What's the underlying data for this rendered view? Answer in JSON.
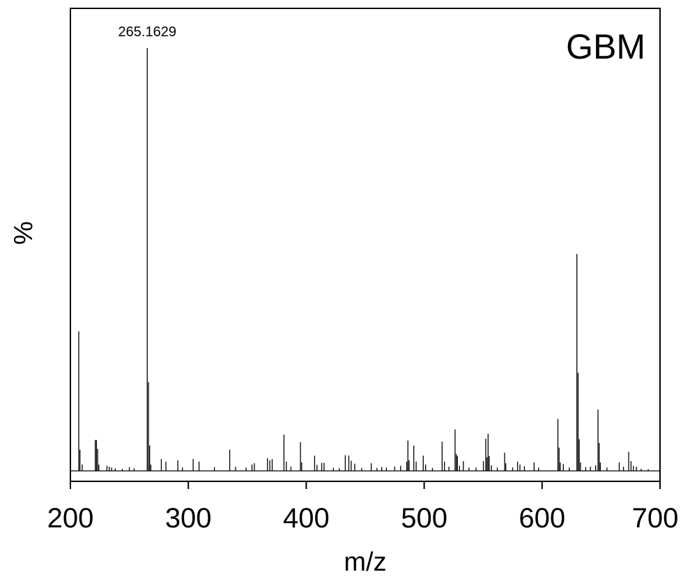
{
  "chart_data": {
    "type": "bar",
    "title": "",
    "panel_label": "GBM",
    "xlabel": "m/z",
    "ylabel": "%",
    "xlim": [
      200,
      700
    ],
    "ylim": [
      0,
      100
    ],
    "xticks": [
      "200",
      "300",
      "400",
      "500",
      "600",
      "700"
    ],
    "grid": false,
    "legend": "none",
    "annotation": {
      "x": 265.1629,
      "text": "265.1629"
    },
    "peaks": [
      {
        "x": 207.1,
        "y": 33
      },
      {
        "x": 208.1,
        "y": 5
      },
      {
        "x": 210.0,
        "y": 1.5
      },
      {
        "x": 221.1,
        "y": 7.3
      },
      {
        "x": 222.1,
        "y": 7.3
      },
      {
        "x": 223.1,
        "y": 5.2
      },
      {
        "x": 224.1,
        "y": 1.5
      },
      {
        "x": 231.0,
        "y": 1.2
      },
      {
        "x": 233.0,
        "y": 1.0
      },
      {
        "x": 235.0,
        "y": 0.8
      },
      {
        "x": 238.0,
        "y": 0.6
      },
      {
        "x": 244.0,
        "y": 0.5
      },
      {
        "x": 250.0,
        "y": 0.9
      },
      {
        "x": 254.0,
        "y": 0.6
      },
      {
        "x": 265.1629,
        "y": 100
      },
      {
        "x": 266.2,
        "y": 21
      },
      {
        "x": 267.2,
        "y": 6
      },
      {
        "x": 268.2,
        "y": 1.5
      },
      {
        "x": 277.1,
        "y": 2.8
      },
      {
        "x": 281.0,
        "y": 2.2
      },
      {
        "x": 291.1,
        "y": 2.5
      },
      {
        "x": 295.0,
        "y": 0.8
      },
      {
        "x": 304.1,
        "y": 2.8
      },
      {
        "x": 309.1,
        "y": 2.2
      },
      {
        "x": 322.1,
        "y": 0.9
      },
      {
        "x": 335.1,
        "y": 5
      },
      {
        "x": 340.0,
        "y": 1.0
      },
      {
        "x": 349.0,
        "y": 0.8
      },
      {
        "x": 354.0,
        "y": 1.5
      },
      {
        "x": 356.0,
        "y": 1.8
      },
      {
        "x": 367.1,
        "y": 3
      },
      {
        "x": 369.1,
        "y": 2.5
      },
      {
        "x": 371.1,
        "y": 2.8
      },
      {
        "x": 381.1,
        "y": 8.6
      },
      {
        "x": 383.1,
        "y": 2.2
      },
      {
        "x": 387.0,
        "y": 1.0
      },
      {
        "x": 395.1,
        "y": 6.8
      },
      {
        "x": 396.1,
        "y": 2.0
      },
      {
        "x": 407.1,
        "y": 3.6
      },
      {
        "x": 409.1,
        "y": 1.4
      },
      {
        "x": 413.1,
        "y": 1.9
      },
      {
        "x": 415.1,
        "y": 1.9
      },
      {
        "x": 423.0,
        "y": 0.7
      },
      {
        "x": 428.0,
        "y": 0.6
      },
      {
        "x": 433.1,
        "y": 3.7
      },
      {
        "x": 436.1,
        "y": 3.6
      },
      {
        "x": 438.1,
        "y": 2.4
      },
      {
        "x": 441.1,
        "y": 1.7
      },
      {
        "x": 447.0,
        "y": 0.7
      },
      {
        "x": 455.1,
        "y": 1.8
      },
      {
        "x": 460.0,
        "y": 0.7
      },
      {
        "x": 464.0,
        "y": 0.9
      },
      {
        "x": 468.0,
        "y": 0.8
      },
      {
        "x": 475.0,
        "y": 1.0
      },
      {
        "x": 480.0,
        "y": 1.2
      },
      {
        "x": 485.2,
        "y": 2.2
      },
      {
        "x": 486.2,
        "y": 7.2
      },
      {
        "x": 487.2,
        "y": 2.5
      },
      {
        "x": 491.2,
        "y": 6
      },
      {
        "x": 493.2,
        "y": 2.2
      },
      {
        "x": 499.2,
        "y": 3.6
      },
      {
        "x": 501.2,
        "y": 1.5
      },
      {
        "x": 507.0,
        "y": 0.7
      },
      {
        "x": 515.2,
        "y": 6.9
      },
      {
        "x": 517.2,
        "y": 2.2
      },
      {
        "x": 521.0,
        "y": 1.0
      },
      {
        "x": 526.2,
        "y": 9.8
      },
      {
        "x": 527.2,
        "y": 4
      },
      {
        "x": 528.2,
        "y": 3.5
      },
      {
        "x": 530.0,
        "y": 1.2
      },
      {
        "x": 533.2,
        "y": 2.3
      },
      {
        "x": 538.0,
        "y": 0.8
      },
      {
        "x": 544.0,
        "y": 0.8
      },
      {
        "x": 550.2,
        "y": 2.3
      },
      {
        "x": 552.2,
        "y": 7.6
      },
      {
        "x": 553.2,
        "y": 3.2
      },
      {
        "x": 554.2,
        "y": 8.8
      },
      {
        "x": 555.2,
        "y": 3.5
      },
      {
        "x": 557.0,
        "y": 1.3
      },
      {
        "x": 562.0,
        "y": 0.8
      },
      {
        "x": 568.2,
        "y": 4.3
      },
      {
        "x": 569.2,
        "y": 1.8
      },
      {
        "x": 575.0,
        "y": 0.8
      },
      {
        "x": 579.2,
        "y": 2.2
      },
      {
        "x": 581.2,
        "y": 1.5
      },
      {
        "x": 585.0,
        "y": 1.1
      },
      {
        "x": 593.2,
        "y": 2.0
      },
      {
        "x": 597.0,
        "y": 0.8
      },
      {
        "x": 613.4,
        "y": 12.3
      },
      {
        "x": 614.4,
        "y": 5.5
      },
      {
        "x": 615.4,
        "y": 2.0
      },
      {
        "x": 618.0,
        "y": 1.6
      },
      {
        "x": 623.0,
        "y": 0.8
      },
      {
        "x": 629.5,
        "y": 51.3
      },
      {
        "x": 630.5,
        "y": 23.2
      },
      {
        "x": 631.5,
        "y": 7.5
      },
      {
        "x": 632.5,
        "y": 2.0
      },
      {
        "x": 637.0,
        "y": 0.9
      },
      {
        "x": 641.0,
        "y": 1.0
      },
      {
        "x": 645.4,
        "y": 1.3
      },
      {
        "x": 647.4,
        "y": 14.5
      },
      {
        "x": 648.4,
        "y": 6.6
      },
      {
        "x": 649.4,
        "y": 2.0
      },
      {
        "x": 655.0,
        "y": 0.8
      },
      {
        "x": 665.4,
        "y": 2.0
      },
      {
        "x": 669.0,
        "y": 1.0
      },
      {
        "x": 673.4,
        "y": 4.5
      },
      {
        "x": 675.4,
        "y": 2.3
      },
      {
        "x": 677.4,
        "y": 1.2
      },
      {
        "x": 680.0,
        "y": 1.0
      },
      {
        "x": 684.0,
        "y": 0.5
      },
      {
        "x": 690.0,
        "y": 0.4
      }
    ]
  }
}
